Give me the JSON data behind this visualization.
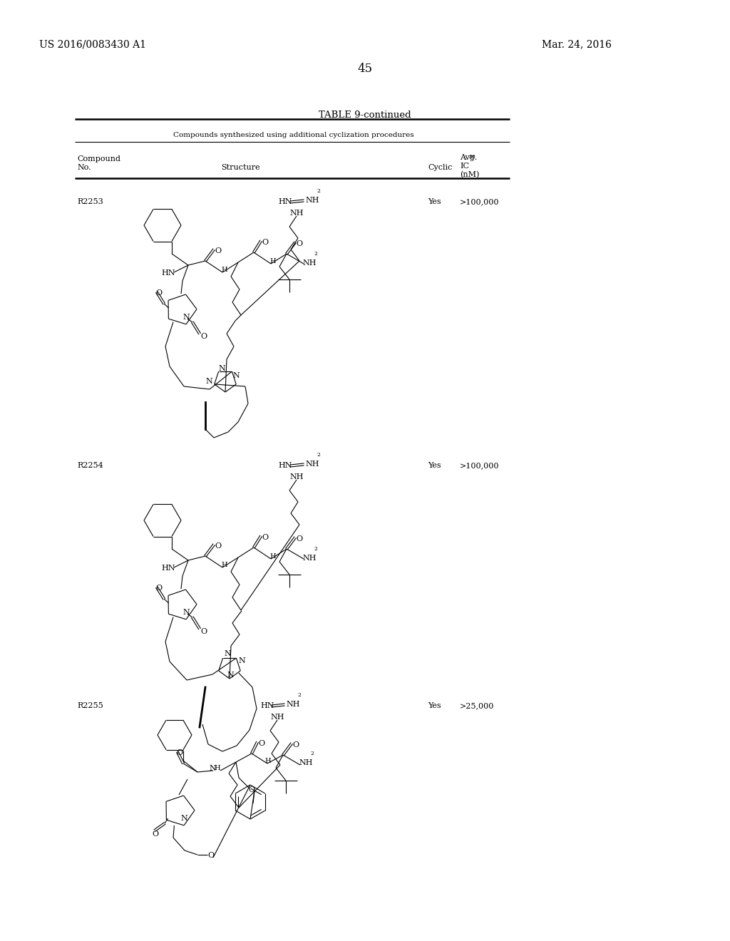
{
  "page_number": "45",
  "patent_number": "US 2016/0083430 A1",
  "patent_date": "Mar. 24, 2016",
  "table_title": "TABLE 9-continued",
  "table_subtitle": "Compounds synthesized using additional cyclization procedures",
  "compounds": [
    {
      "id": "R2253",
      "cyclic": "Yes",
      "ic50": ">100,000"
    },
    {
      "id": "R2254",
      "cyclic": "Yes",
      "ic50": ">100,000"
    },
    {
      "id": "R2255",
      "cyclic": "Yes",
      "ic50": ">25,000"
    }
  ],
  "background_color": "#ffffff"
}
